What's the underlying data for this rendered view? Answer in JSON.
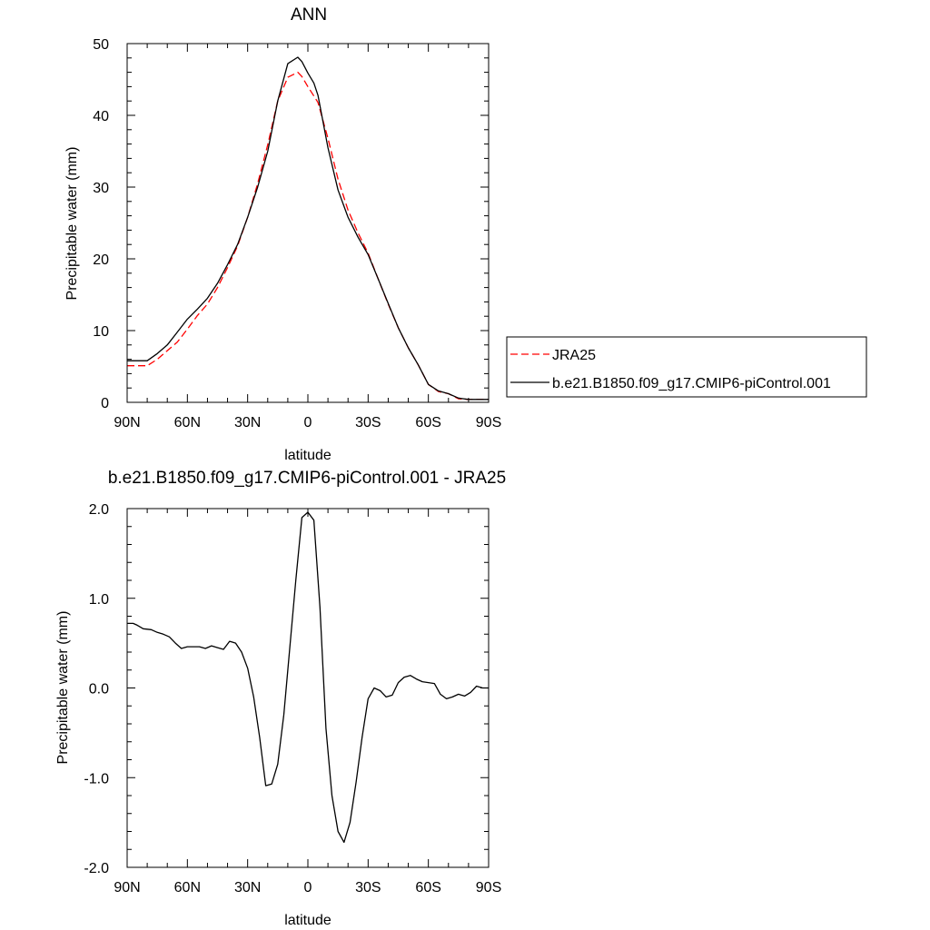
{
  "colors": {
    "case": "#000000",
    "reference": "#ff0000",
    "axis": "#000000",
    "background": "#ffffff"
  },
  "chart_data": [
    {
      "type": "line",
      "title": "ANN",
      "xlabel": "latitude",
      "ylabel": "Precipitable water (mm)",
      "xlim": [
        90,
        -90
      ],
      "ylim": [
        0,
        50
      ],
      "x_direction": "north-to-south",
      "x_ticks": [
        90,
        60,
        30,
        0,
        -30,
        -60,
        -90
      ],
      "x_ticklabels": [
        "90N",
        "60N",
        "30N",
        "0",
        "30S",
        "60S",
        "90S"
      ],
      "y_ticks": [
        0,
        10,
        20,
        30,
        40,
        50
      ],
      "y_ticklabels": [
        "0",
        "10",
        "20",
        "30",
        "40",
        "50"
      ],
      "legend_position": "right",
      "legend": [
        {
          "label": "JRA25",
          "style": "dashed",
          "color": "#ff0000"
        },
        {
          "label": "b.e21.B1850.f09_g17.CMIP6-piControl.001",
          "style": "solid",
          "color": "#000000"
        }
      ],
      "series": [
        {
          "name": "JRA25",
          "style": "dashed",
          "color": "#ff0000",
          "x": [
            90,
            80,
            75,
            70,
            65,
            60,
            55,
            50,
            45,
            40,
            35,
            30,
            25,
            20,
            15,
            10,
            5,
            3,
            0,
            -3,
            -5,
            -10,
            -15,
            -20,
            -25,
            -30,
            -35,
            -40,
            -45,
            -50,
            -55,
            -60,
            -65,
            -70,
            -75,
            -80,
            -85,
            -90
          ],
          "y": [
            5.1,
            5.1,
            6.0,
            7.2,
            8.4,
            10.2,
            12.1,
            13.7,
            16.0,
            18.8,
            21.8,
            25.8,
            30.5,
            35.9,
            42.0,
            45.3,
            46.0,
            45.4,
            44.0,
            42.7,
            41.8,
            36.8,
            31.1,
            26.8,
            23.6,
            20.8,
            17.2,
            13.7,
            10.4,
            7.6,
            5.2,
            2.5,
            1.5,
            1.2,
            0.5,
            0.4,
            0.4,
            0.4
          ]
        },
        {
          "name": "b.e21.B1850.f09_g17.CMIP6-piControl.001",
          "style": "solid",
          "color": "#000000",
          "x": [
            90,
            80,
            75,
            70,
            65,
            60,
            55,
            50,
            45,
            40,
            35,
            30,
            25,
            20,
            15,
            10,
            5,
            3,
            0,
            -3,
            -5,
            -10,
            -15,
            -20,
            -25,
            -30,
            -35,
            -40,
            -45,
            -50,
            -55,
            -60,
            -65,
            -70,
            -75,
            -80,
            -85,
            -90
          ],
          "y": [
            5.8,
            5.8,
            6.8,
            8.0,
            9.8,
            11.6,
            13.0,
            14.5,
            16.6,
            19.2,
            22.0,
            25.8,
            30.0,
            35.0,
            42.0,
            47.2,
            48.1,
            47.5,
            45.9,
            44.5,
            42.8,
            35.5,
            29.6,
            25.8,
            23.0,
            20.6,
            17.2,
            13.8,
            10.4,
            7.6,
            5.2,
            2.5,
            1.6,
            1.2,
            0.6,
            0.4,
            0.4,
            0.4
          ]
        }
      ]
    },
    {
      "type": "line",
      "title": "b.e21.B1850.f09_g17.CMIP6-piControl.001 - JRA25",
      "xlabel": "latitude",
      "ylabel": "Precipitable water (mm)",
      "xlim": [
        90,
        -90
      ],
      "ylim": [
        -2.0,
        2.0
      ],
      "x_direction": "north-to-south",
      "x_ticks": [
        90,
        60,
        30,
        0,
        -30,
        -60,
        -90
      ],
      "x_ticklabels": [
        "90N",
        "60N",
        "30N",
        "0",
        "30S",
        "60S",
        "90S"
      ],
      "y_ticks": [
        -2.0,
        -1.0,
        0.0,
        1.0,
        2.0
      ],
      "y_ticklabels": [
        "-2.0",
        "-1.0",
        "0.0",
        "1.0",
        "2.0"
      ],
      "series": [
        {
          "style": "solid",
          "color": "#000000",
          "x": [
            90,
            87,
            85,
            82,
            78,
            75,
            72,
            69,
            66,
            63,
            60,
            57,
            54,
            51,
            48,
            45,
            42,
            39,
            36,
            33,
            30,
            27,
            24,
            21,
            18,
            15,
            12,
            9,
            6,
            3,
            0,
            -3,
            -6,
            -9,
            -12,
            -15,
            -18,
            -21,
            -24,
            -27,
            -30,
            -33,
            -36,
            -39,
            -42,
            -45,
            -48,
            -51,
            -54,
            -57,
            -60,
            -63,
            -66,
            -69,
            -72,
            -75,
            -78,
            -81,
            -84,
            -87,
            -90
          ],
          "y": [
            0.72,
            0.72,
            0.7,
            0.66,
            0.65,
            0.62,
            0.6,
            0.57,
            0.5,
            0.44,
            0.46,
            0.46,
            0.46,
            0.44,
            0.47,
            0.45,
            0.43,
            0.52,
            0.5,
            0.4,
            0.22,
            -0.1,
            -0.55,
            -1.09,
            -1.07,
            -0.85,
            -0.3,
            0.45,
            1.2,
            1.9,
            1.96,
            1.87,
            0.9,
            -0.45,
            -1.2,
            -1.6,
            -1.72,
            -1.5,
            -1.05,
            -0.55,
            -0.12,
            0.0,
            -0.03,
            -0.1,
            -0.08,
            0.06,
            0.12,
            0.14,
            0.1,
            0.07,
            0.06,
            0.05,
            -0.07,
            -0.12,
            -0.1,
            -0.07,
            -0.09,
            -0.05,
            0.02,
            0.0,
            0.0
          ]
        }
      ]
    }
  ]
}
